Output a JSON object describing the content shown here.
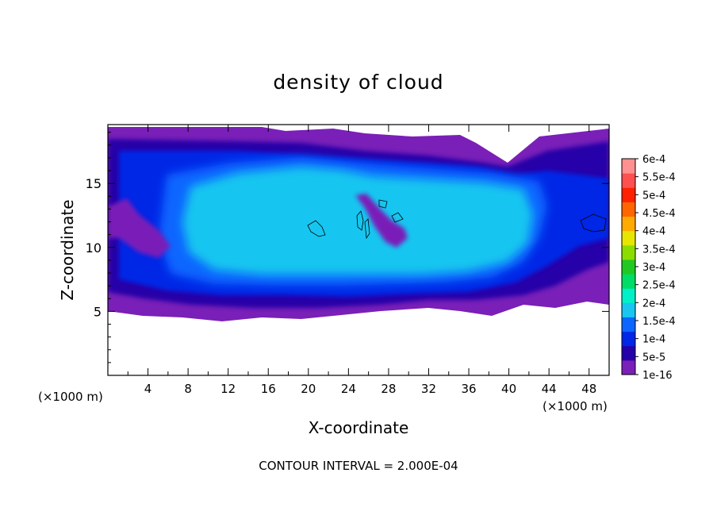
{
  "chart_data": {
    "type": "heatmap",
    "title": "density of cloud",
    "xlabel": "X-coordinate",
    "ylabel": "Z-coordinate",
    "x_unit_left": "(×1000 m)",
    "x_unit_right": "(×1000 m)",
    "xlim": [
      0,
      50
    ],
    "ylim": [
      0,
      19.6
    ],
    "x_ticks": [
      4,
      8,
      12,
      16,
      20,
      24,
      28,
      32,
      36,
      40,
      44,
      48
    ],
    "y_ticks": [
      5,
      10,
      15
    ],
    "x_tick_labels": [
      "4",
      "8",
      "12",
      "16",
      "20",
      "24",
      "28",
      "32",
      "36",
      "40",
      "44",
      "48"
    ],
    "y_tick_labels": [
      "5",
      "10",
      "15"
    ],
    "footer": "CONTOUR INTERVAL = 2.000E-04",
    "colorbar": {
      "labels": [
        "1e-16",
        "5e-5",
        "1e-4",
        "1.5e-4",
        "2e-4",
        "2.5e-4",
        "3e-4",
        "3.5e-4",
        "4e-4",
        "4.5e-4",
        "5e-4",
        "5.5e-4",
        "6e-4"
      ],
      "colors": [
        "#7a1fb8",
        "#2600a8",
        "#0026e6",
        "#0a66ff",
        "#19c6f0",
        "#00f0c8",
        "#00dd66",
        "#22c822",
        "#8cdc00",
        "#e6e600",
        "#ffaa00",
        "#ff6600",
        "#ff2200",
        "#ff5050",
        "#ff9090"
      ]
    },
    "cloud_region": {
      "x_range": [
        0,
        50
      ],
      "z_range": [
        5,
        19.5
      ],
      "core_value_approx": 0.0002,
      "core_x_range": [
        7,
        40
      ],
      "core_z_range": [
        8,
        16
      ]
    }
  }
}
